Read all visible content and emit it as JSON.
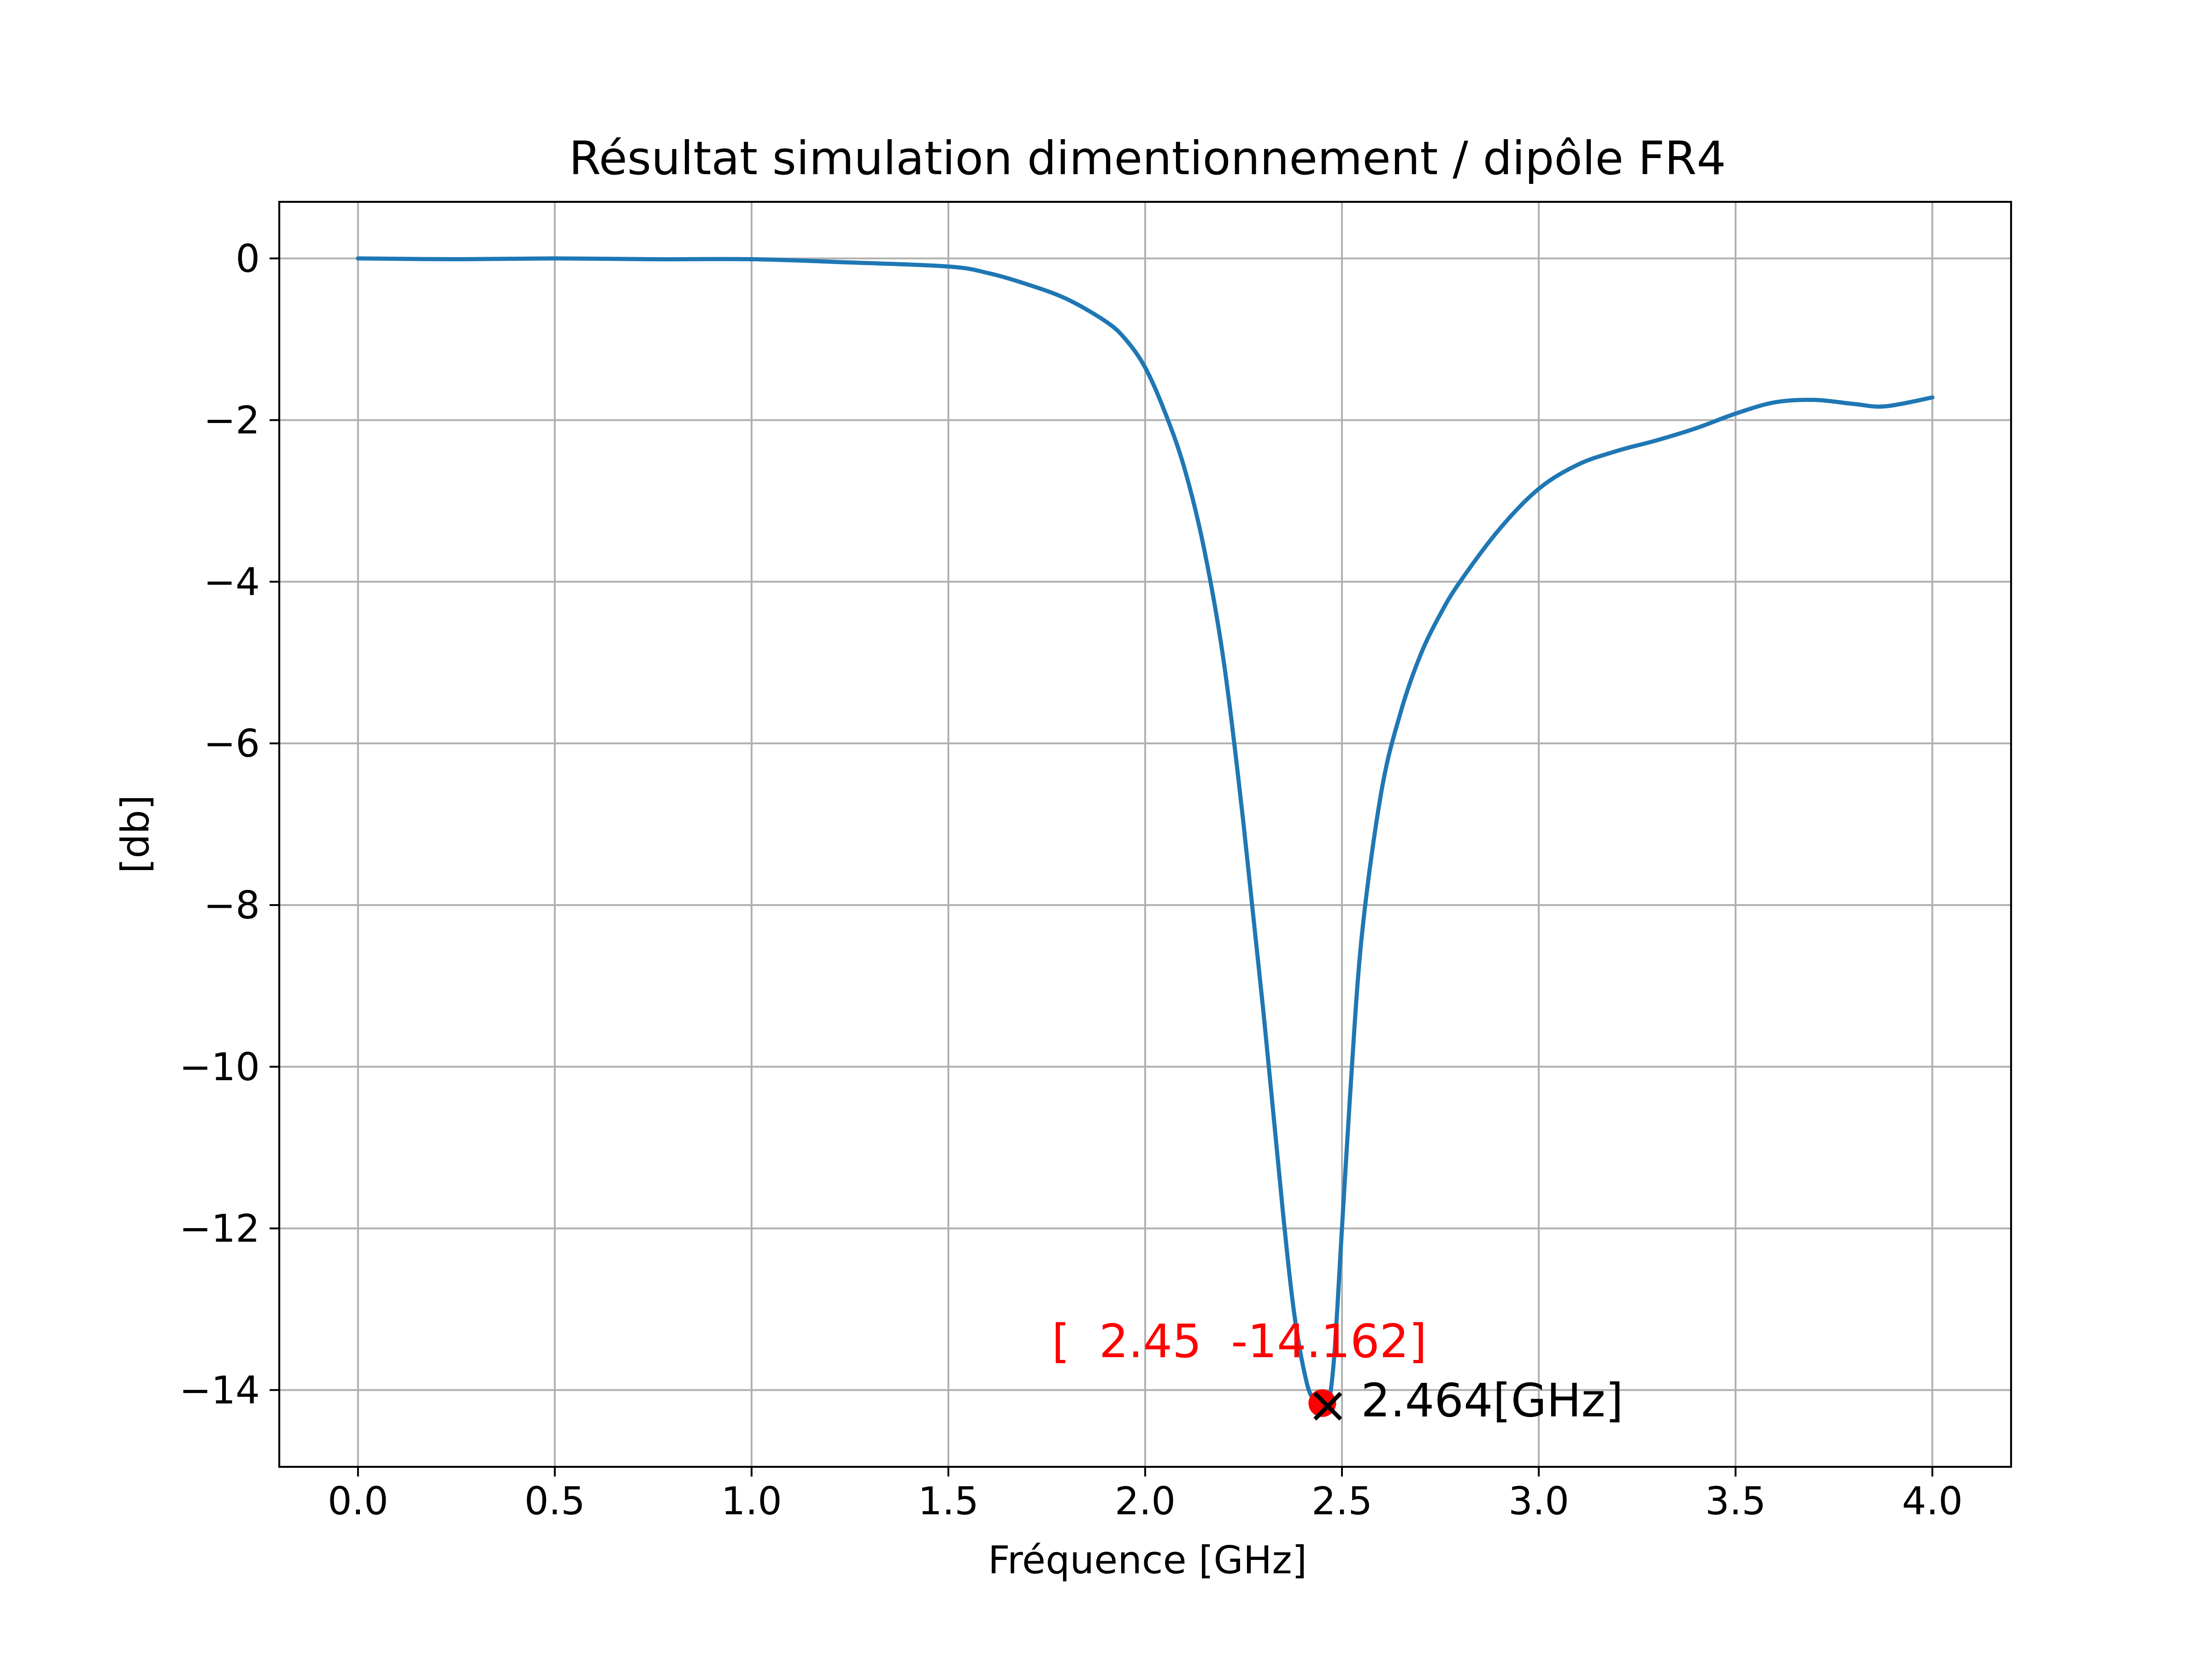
{
  "chart_data": {
    "type": "line",
    "title": "Résultat simulation dimentionnement / dipôle FR4",
    "xlabel": "Fréquence [GHz]",
    "ylabel": "[db]",
    "xlim": [
      -0.2,
      4.2
    ],
    "ylim": [
      -14.95,
      0.7
    ],
    "xticks": [
      0.0,
      0.5,
      1.0,
      1.5,
      2.0,
      2.5,
      3.0,
      3.5,
      4.0
    ],
    "xtick_labels": [
      "0.0",
      "0.5",
      "1.0",
      "1.5",
      "2.0",
      "2.5",
      "3.0",
      "3.5",
      "4.0"
    ],
    "yticks": [
      0,
      -2,
      -4,
      -6,
      -8,
      -10,
      -12,
      -14
    ],
    "ytick_labels": [
      "0",
      "−2",
      "−4",
      "−6",
      "−8",
      "−10",
      "−12",
      "−14"
    ],
    "grid": true,
    "series": [
      {
        "color": "#1f77b4",
        "x": [
          0.0,
          0.25,
          0.5,
          0.75,
          1.0,
          1.25,
          1.5,
          1.6,
          1.7,
          1.8,
          1.9,
          1.95,
          2.0,
          2.05,
          2.1,
          2.15,
          2.2,
          2.25,
          2.3,
          2.35,
          2.38,
          2.41,
          2.43,
          2.45,
          2.464,
          2.48,
          2.5,
          2.52,
          2.55,
          2.6,
          2.65,
          2.7,
          2.75,
          2.8,
          2.9,
          3.0,
          3.1,
          3.2,
          3.3,
          3.4,
          3.5,
          3.6,
          3.7,
          3.8,
          3.88,
          4.0
        ],
        "y": [
          0.0,
          -0.01,
          0.0,
          -0.01,
          -0.01,
          -0.05,
          -0.1,
          -0.18,
          -0.32,
          -0.5,
          -0.78,
          -1.0,
          -1.35,
          -1.9,
          -2.6,
          -3.6,
          -5.0,
          -7.0,
          -9.3,
          -11.8,
          -13.1,
          -13.9,
          -14.12,
          -14.162,
          -14.2,
          -13.6,
          -12.0,
          -10.4,
          -8.4,
          -6.6,
          -5.6,
          -4.9,
          -4.4,
          -4.0,
          -3.35,
          -2.85,
          -2.55,
          -2.38,
          -2.25,
          -2.1,
          -1.92,
          -1.78,
          -1.75,
          -1.8,
          -1.83,
          -1.72
        ]
      }
    ],
    "markers": [
      {
        "type": "dot",
        "x": 2.45,
        "y": -14.162,
        "color": "#ff0000"
      },
      {
        "type": "x",
        "x": 2.464,
        "y": -14.2,
        "color": "#000000"
      }
    ],
    "annotations": [
      {
        "text": "[  2.45  -14.162]",
        "x": 2.45,
        "y": -14.162,
        "color": "#ff0000"
      },
      {
        "text": "2.464[GHz]",
        "x": 2.464,
        "y": -14.2,
        "color": "#000000"
      }
    ]
  }
}
